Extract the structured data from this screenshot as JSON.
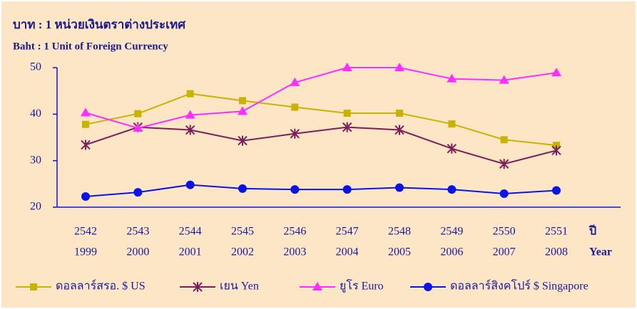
{
  "chart_data": {
    "type": "line",
    "title": "บาท : 1 หน่วยเงินตราต่างประเทศ",
    "subtitle": "Baht : 1 Unit of Foreign Currency",
    "x_label": "ปี",
    "x_label_2": "Year",
    "categories": [
      "2542",
      "2543",
      "2544",
      "2545",
      "2546",
      "2547",
      "2548",
      "2549",
      "2550",
      "2551"
    ],
    "categories_2": [
      "1999",
      "2000",
      "2001",
      "2002",
      "2003",
      "2004",
      "2005",
      "2006",
      "2007",
      "2008"
    ],
    "ylim": [
      20,
      50
    ],
    "yticks": [
      20,
      30,
      40,
      50
    ],
    "series": [
      {
        "name": "ดอลลาร์สรอ. $ US",
        "color": "#c8b400",
        "marker": "square",
        "values": [
          37.8,
          40.1,
          44.4,
          42.9,
          41.5,
          40.2,
          40.2,
          37.9,
          34.5,
          33.3
        ]
      },
      {
        "name": "เยน Yen",
        "color": "#7b1f5a",
        "marker": "star",
        "values": [
          33.4,
          37.2,
          36.6,
          34.3,
          35.8,
          37.2,
          36.6,
          32.6,
          29.3,
          32.2
        ]
      },
      {
        "name": "ยูโร Euro",
        "color": "#ff2cff",
        "marker": "triangle",
        "values": [
          40.3,
          37.0,
          39.8,
          40.6,
          46.8,
          50.0,
          50.0,
          47.6,
          47.3,
          48.9
        ]
      },
      {
        "name": "ดอลลาร์สิงคโปร์ $ Singapore",
        "color": "#0a14e6",
        "marker": "circle",
        "values": [
          22.3,
          23.2,
          24.8,
          24.0,
          23.8,
          23.8,
          24.2,
          23.8,
          22.9,
          23.6
        ]
      }
    ]
  }
}
